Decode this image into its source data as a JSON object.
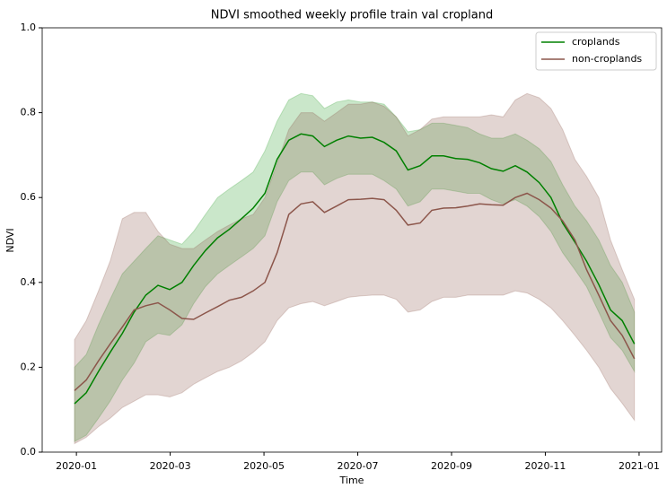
{
  "chart_data": {
    "type": "line",
    "title": "NDVI smoothed weekly profile train val cropland",
    "xlabel": "Time",
    "ylabel": "NDVI",
    "x": [
      -0.04,
      0.21,
      0.47,
      0.72,
      0.98,
      1.23,
      1.48,
      1.74,
      1.99,
      2.25,
      2.5,
      2.75,
      3.01,
      3.26,
      3.52,
      3.77,
      4.02,
      4.28,
      4.53,
      4.79,
      5.04,
      5.29,
      5.55,
      5.8,
      6.06,
      6.31,
      6.56,
      6.82,
      7.07,
      7.33,
      7.58,
      7.83,
      8.09,
      8.34,
      8.6,
      8.85,
      9.1,
      9.36,
      9.61,
      9.87,
      10.12,
      10.37,
      10.63,
      10.88,
      11.14,
      11.39,
      11.64,
      11.9
    ],
    "series": [
      {
        "name": "croplands",
        "color": "#008000",
        "band_color": "#2ca02c",
        "values": [
          0.114,
          0.14,
          0.19,
          0.235,
          0.28,
          0.33,
          0.37,
          0.393,
          0.383,
          0.4,
          0.44,
          0.475,
          0.505,
          0.525,
          0.55,
          0.575,
          0.61,
          0.69,
          0.735,
          0.75,
          0.745,
          0.72,
          0.735,
          0.745,
          0.74,
          0.742,
          0.73,
          0.71,
          0.665,
          0.675,
          0.698,
          0.698,
          0.692,
          0.69,
          0.682,
          0.668,
          0.662,
          0.675,
          0.66,
          0.635,
          0.6,
          0.54,
          0.495,
          0.45,
          0.395,
          0.335,
          0.31,
          0.255
        ],
        "upper": [
          0.2,
          0.23,
          0.3,
          0.36,
          0.42,
          0.45,
          0.48,
          0.51,
          0.5,
          0.49,
          0.52,
          0.56,
          0.6,
          0.62,
          0.64,
          0.66,
          0.71,
          0.78,
          0.83,
          0.845,
          0.84,
          0.81,
          0.825,
          0.83,
          0.825,
          0.825,
          0.82,
          0.79,
          0.755,
          0.76,
          0.775,
          0.775,
          0.77,
          0.765,
          0.75,
          0.74,
          0.74,
          0.75,
          0.735,
          0.715,
          0.685,
          0.63,
          0.58,
          0.545,
          0.5,
          0.44,
          0.4,
          0.33
        ],
        "lower": [
          0.025,
          0.04,
          0.08,
          0.12,
          0.17,
          0.21,
          0.26,
          0.28,
          0.275,
          0.3,
          0.35,
          0.39,
          0.42,
          0.44,
          0.46,
          0.48,
          0.51,
          0.59,
          0.64,
          0.66,
          0.66,
          0.63,
          0.645,
          0.655,
          0.655,
          0.655,
          0.64,
          0.62,
          0.58,
          0.59,
          0.62,
          0.62,
          0.615,
          0.61,
          0.61,
          0.595,
          0.585,
          0.595,
          0.58,
          0.555,
          0.52,
          0.47,
          0.43,
          0.39,
          0.33,
          0.27,
          0.24,
          0.19
        ]
      },
      {
        "name": "non-croplands",
        "color": "#8c564b",
        "band_color": "#8c564b",
        "values": [
          0.145,
          0.17,
          0.215,
          0.255,
          0.295,
          0.335,
          0.345,
          0.352,
          0.335,
          0.315,
          0.313,
          0.328,
          0.343,
          0.358,
          0.365,
          0.38,
          0.4,
          0.47,
          0.56,
          0.585,
          0.59,
          0.565,
          0.58,
          0.595,
          0.596,
          0.598,
          0.595,
          0.57,
          0.535,
          0.54,
          0.57,
          0.575,
          0.576,
          0.58,
          0.585,
          0.583,
          0.582,
          0.6,
          0.61,
          0.595,
          0.575,
          0.545,
          0.5,
          0.43,
          0.37,
          0.31,
          0.275,
          0.22
        ],
        "upper": [
          0.265,
          0.31,
          0.38,
          0.45,
          0.55,
          0.565,
          0.565,
          0.52,
          0.49,
          0.48,
          0.48,
          0.5,
          0.52,
          0.535,
          0.55,
          0.56,
          0.6,
          0.68,
          0.76,
          0.8,
          0.8,
          0.78,
          0.8,
          0.82,
          0.82,
          0.825,
          0.815,
          0.79,
          0.745,
          0.76,
          0.785,
          0.79,
          0.79,
          0.79,
          0.79,
          0.795,
          0.79,
          0.83,
          0.845,
          0.835,
          0.81,
          0.76,
          0.69,
          0.65,
          0.6,
          0.5,
          0.43,
          0.36
        ],
        "lower": [
          0.02,
          0.035,
          0.06,
          0.08,
          0.105,
          0.12,
          0.135,
          0.135,
          0.13,
          0.14,
          0.16,
          0.175,
          0.19,
          0.2,
          0.215,
          0.235,
          0.26,
          0.31,
          0.34,
          0.35,
          0.355,
          0.345,
          0.355,
          0.365,
          0.368,
          0.37,
          0.37,
          0.36,
          0.33,
          0.335,
          0.355,
          0.365,
          0.365,
          0.37,
          0.37,
          0.37,
          0.37,
          0.38,
          0.375,
          0.36,
          0.34,
          0.31,
          0.275,
          0.24,
          0.2,
          0.15,
          0.115,
          0.075
        ]
      }
    ],
    "xlim": [
      -0.73,
      12.48
    ],
    "xticks": [
      {
        "value": 0,
        "label": "2020-01"
      },
      {
        "value": 2,
        "label": "2020-03"
      },
      {
        "value": 4,
        "label": "2020-05"
      },
      {
        "value": 6,
        "label": "2020-07"
      },
      {
        "value": 8,
        "label": "2020-09"
      },
      {
        "value": 10,
        "label": "2020-11"
      },
      {
        "value": 12,
        "label": "2021-01"
      }
    ],
    "ylim": [
      0,
      1
    ],
    "yticks": [
      {
        "value": 0,
        "label": "0.0"
      },
      0.2,
      0.4,
      0.6,
      0.8,
      {
        "value": 1,
        "label": "1.0"
      }
    ],
    "legend": "upper right"
  }
}
